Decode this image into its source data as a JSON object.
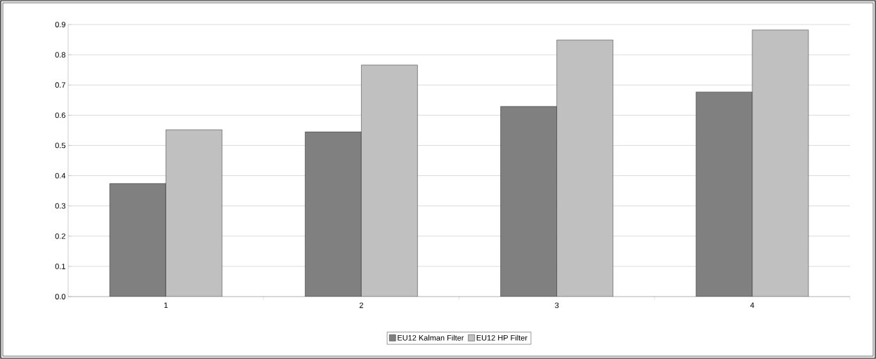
{
  "chart_data": {
    "type": "bar",
    "categories": [
      "1",
      "2",
      "3",
      "4"
    ],
    "series": [
      {
        "name": "EU12 Kalman Filter",
        "color": "#808080",
        "values": [
          0.374,
          0.545,
          0.629,
          0.677
        ]
      },
      {
        "name": "EU12 HP Filter",
        "color": "#c0c0c0",
        "values": [
          0.552,
          0.766,
          0.849,
          0.882
        ]
      }
    ],
    "ylim": [
      0,
      0.9
    ],
    "yticks": [
      {
        "value": 0,
        "label": "0.0"
      },
      0.1,
      0.2,
      0.3,
      0.4,
      0.5,
      0.6,
      0.7,
      0.8,
      0.9
    ],
    "grid": "y",
    "legend": "bottom"
  }
}
